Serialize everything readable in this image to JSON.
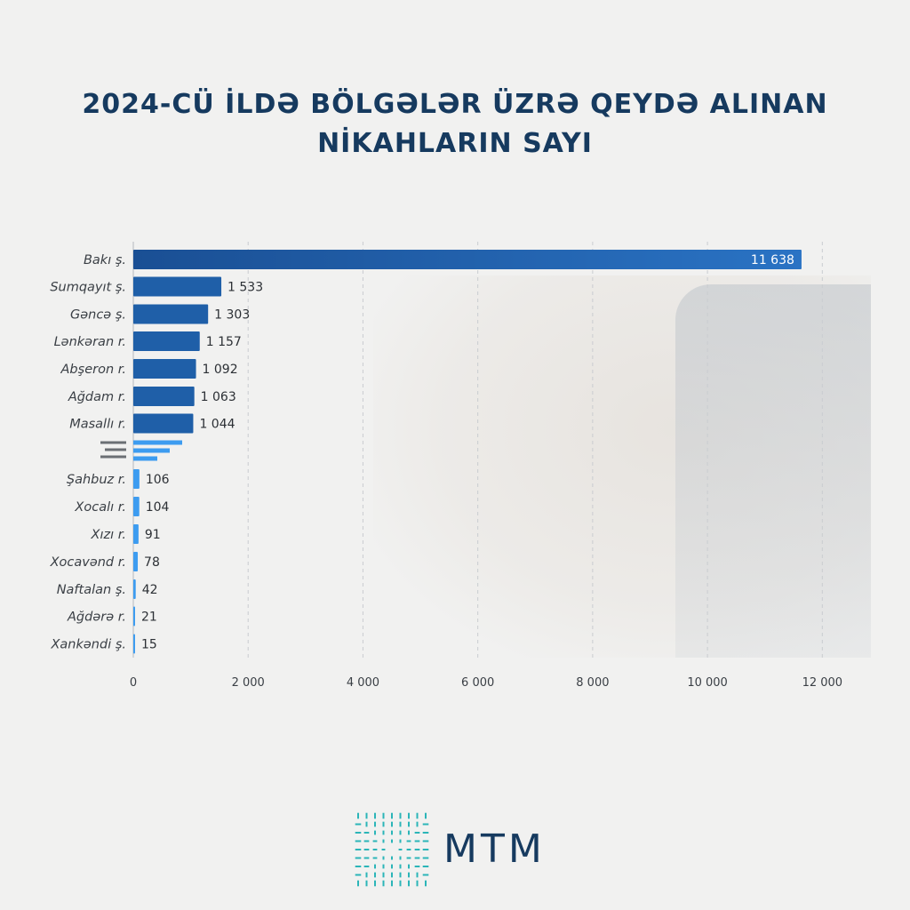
{
  "title_line1": "2024-CÜ İLDƏ BÖLGƏLƏR ÜZRƏ QEYDƏ ALINAN",
  "title_line2": "NİKAHLARIN SAYI",
  "logo_text": "MTM",
  "colors": {
    "bar_dark": "#1f5fa8",
    "bar_light": "#3d9cf0",
    "title": "#163a5f",
    "logo_teal": "#2bb5b8"
  },
  "chart_data": {
    "type": "bar",
    "orientation": "horizontal",
    "title": "2024-CÜ İLDƏ BÖLGƏLƏR ÜZRƏ QEYDƏ ALINAN NİKAHLARIN SAYI",
    "categories": [
      "Bakı ş.",
      "Sumqayıt ş.",
      "Gəncə ş.",
      "Lənkəran r.",
      "Abşeron r.",
      "Ağdam r.",
      "Masallı r.",
      "Şahbuz r.",
      "Xocalı r.",
      "Xızı r.",
      "Xocavənd r.",
      "Naftalan ş.",
      "Ağdərə r.",
      "Xankəndi ş."
    ],
    "values": [
      11638,
      1533,
      1303,
      1157,
      1092,
      1063,
      1044,
      106,
      104,
      91,
      78,
      42,
      21,
      15
    ],
    "value_labels": [
      "11 638",
      "1 533",
      "1 303",
      "1 157",
      "1 092",
      "1 063",
      "1 044",
      "106",
      "104",
      "91",
      "78",
      "42",
      "21",
      "15"
    ],
    "xlim": [
      0,
      12800
    ],
    "xticks": [
      0,
      2000,
      4000,
      6000,
      8000,
      10000,
      12000
    ],
    "xtick_labels": [
      "0",
      "2 000",
      "4 000",
      "6 000",
      "8 000",
      "10 000",
      "12 000"
    ],
    "grid": "vertical dashed",
    "legend": "none",
    "break_marker_after_index": 6
  }
}
